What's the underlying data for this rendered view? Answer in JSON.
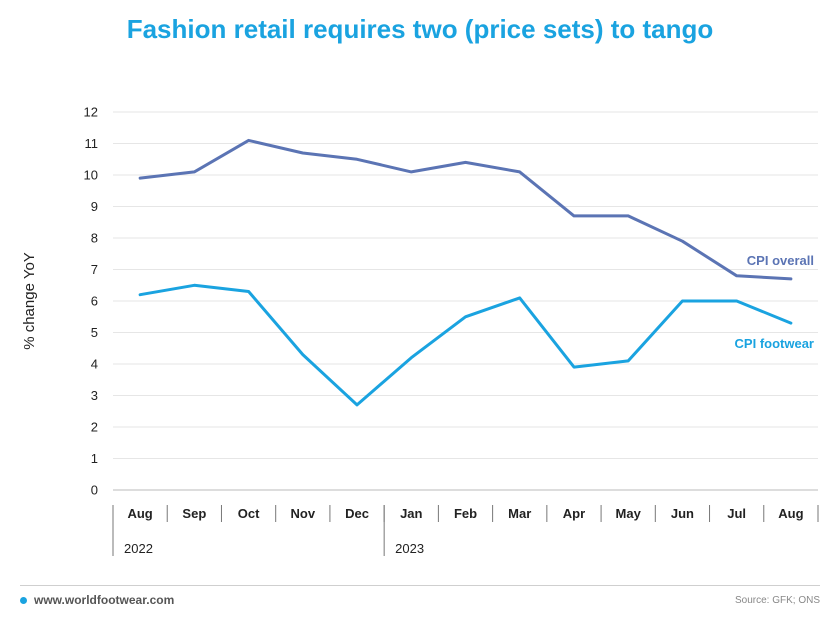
{
  "title": "Fashion retail requires two (price sets) to tango",
  "colors": {
    "title": "#1aa3e0",
    "cpi_overall": "#5b74b4",
    "cpi_footwear": "#1aa3e0",
    "grid": "#e6e6e6",
    "axis_text": "#222222"
  },
  "chart_data": {
    "type": "line",
    "title": "Fashion retail requires two (price sets) to tango",
    "xlabel": "",
    "ylabel": "% change YoY",
    "ylim": [
      0,
      12
    ],
    "yticks": [
      0,
      1,
      2,
      3,
      4,
      5,
      6,
      7,
      8,
      9,
      10,
      11,
      12
    ],
    "grid": true,
    "categories": [
      "Aug",
      "Sep",
      "Oct",
      "Nov",
      "Dec",
      "Jan",
      "Feb",
      "Mar",
      "Apr",
      "May",
      "Jun",
      "Jul",
      "Aug"
    ],
    "year_groups": [
      {
        "label": "2022",
        "start_index": 0
      },
      {
        "label": "2023",
        "start_index": 5
      }
    ],
    "series": [
      {
        "name": "CPI overall",
        "color": "#5b74b4",
        "values": [
          9.9,
          10.1,
          11.1,
          10.7,
          10.5,
          10.1,
          10.4,
          10.1,
          8.7,
          8.7,
          7.9,
          6.8,
          6.7
        ]
      },
      {
        "name": "CPI footwear",
        "color": "#1aa3e0",
        "values": [
          6.2,
          6.5,
          6.3,
          4.3,
          2.7,
          4.2,
          5.5,
          6.1,
          3.9,
          4.1,
          6.0,
          6.0,
          5.3
        ]
      }
    ]
  },
  "footer": {
    "url": "www.worldfootwear.com",
    "source": "Source: GFK; ONS"
  }
}
